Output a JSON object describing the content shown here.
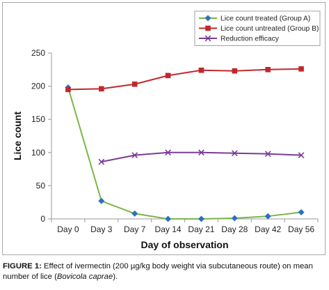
{
  "chart_data": {
    "type": "line",
    "categories": [
      "Day 0",
      "Day 3",
      "Day 7",
      "Day 14",
      "Day 21",
      "Day 28",
      "Day 42",
      "Day 56"
    ],
    "series": [
      {
        "name": "Lice count treated (Group A)",
        "color": "#7ab648",
        "marker": "diamond",
        "marker_color": "#2e6fc0",
        "values": [
          198,
          27,
          8,
          0,
          0,
          1,
          4,
          10
        ]
      },
      {
        "name": "Lice count untreated (Group B)",
        "color": "#c0282d",
        "marker": "square",
        "marker_color": "#c0282d",
        "values": [
          195,
          196,
          203,
          216,
          224,
          223,
          225,
          226
        ]
      },
      {
        "name": "Reduction efficacy",
        "color": "#7a3c96",
        "marker": "x",
        "marker_color": "#7a3c96",
        "values": [
          null,
          86,
          96,
          100,
          100,
          99,
          98,
          96
        ]
      }
    ],
    "xlabel": "Day of observation",
    "ylabel": "Lice count",
    "ylim": [
      0,
      250
    ],
    "yticks": [
      "0",
      "50",
      "100",
      "150",
      "200",
      "250"
    ],
    "grid": false,
    "legend_position": "top-right"
  },
  "caption": {
    "label": "FIGURE 1:",
    "text_before": " Effect of ivermectin (200 µg/kg body weight via subcutaneous route) on mean number of lice (",
    "species": "Bovicola caprae",
    "text_after": ")."
  }
}
